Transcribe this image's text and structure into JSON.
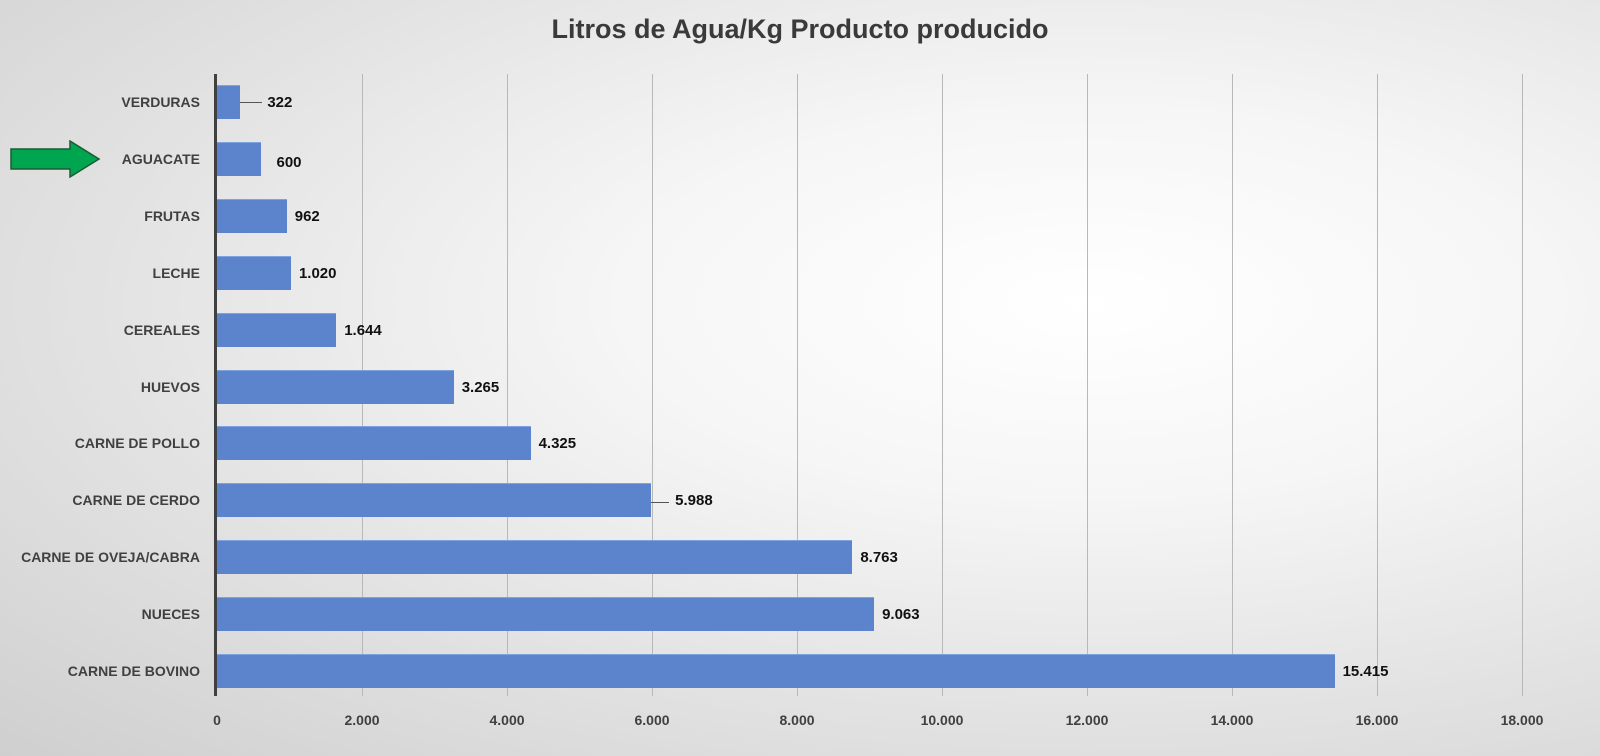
{
  "chart_data": {
    "type": "bar",
    "orientation": "horizontal",
    "title": "Litros de Agua/Kg Producto producido",
    "xlabel": "",
    "ylabel": "",
    "xlim": [
      0,
      18000
    ],
    "grid": true,
    "categories": [
      "VERDURAS",
      "AGUACATE",
      "FRUTAS",
      "LECHE",
      "CEREALES",
      "HUEVOS",
      "CARNE DE POLLO",
      "CARNE DE CERDO",
      "CARNE DE OVEJA/CABRA",
      "NUECES",
      "CARNE DE BOVINO"
    ],
    "values": [
      322,
      600,
      962,
      1020,
      1644,
      3265,
      4325,
      5988,
      8763,
      9063,
      15415
    ],
    "value_labels": [
      "322",
      "600",
      "962",
      "1.020",
      "1.644",
      "3.265",
      "4.325",
      "5.988",
      "8.763",
      "9.063",
      "15.415"
    ],
    "x_ticks": [
      "0",
      "2.000",
      "4.000",
      "6.000",
      "8.000",
      "10.000",
      "12.000",
      "14.000",
      "16.000",
      "18.000"
    ],
    "bar_color": "#5b84cc",
    "annotations": [
      {
        "type": "arrow",
        "color": "#00a550",
        "points_to": "AGUACATE"
      }
    ]
  }
}
